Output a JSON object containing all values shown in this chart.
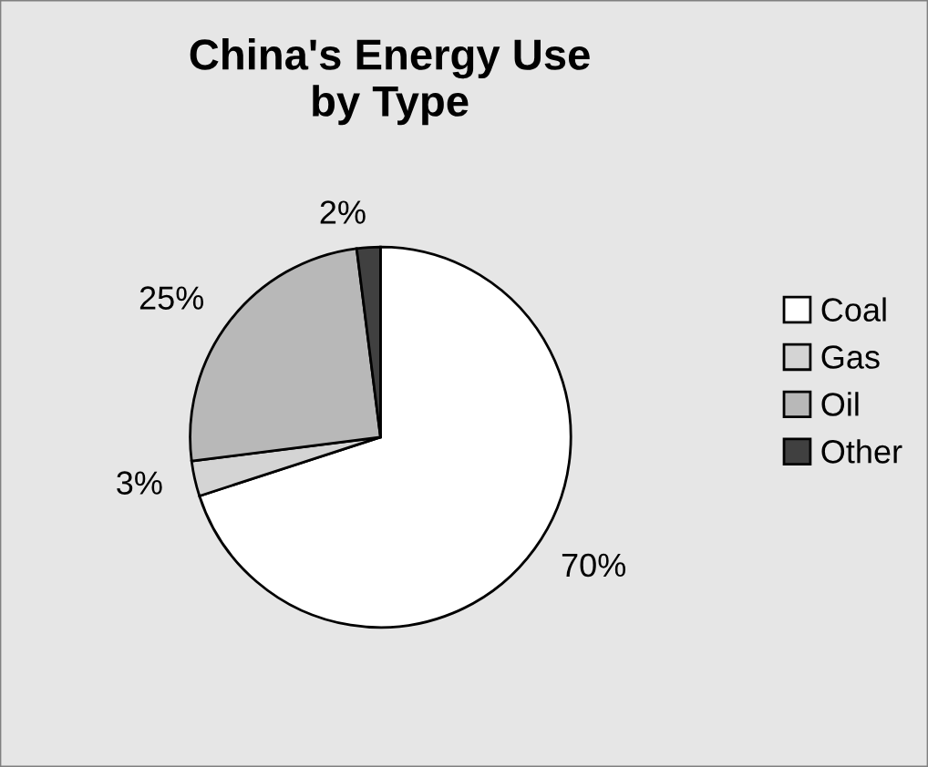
{
  "chart_data": {
    "type": "pie",
    "title": "China's Energy Use\nby Type",
    "categories": [
      "Coal",
      "Gas",
      "Oil",
      "Other"
    ],
    "values": [
      70,
      3,
      25,
      2
    ],
    "value_labels": [
      "70%",
      "3%",
      "25%",
      "2%"
    ],
    "colors": [
      "#ffffff",
      "#d4d4d4",
      "#b8b8b8",
      "#404040"
    ],
    "legend": "right"
  }
}
